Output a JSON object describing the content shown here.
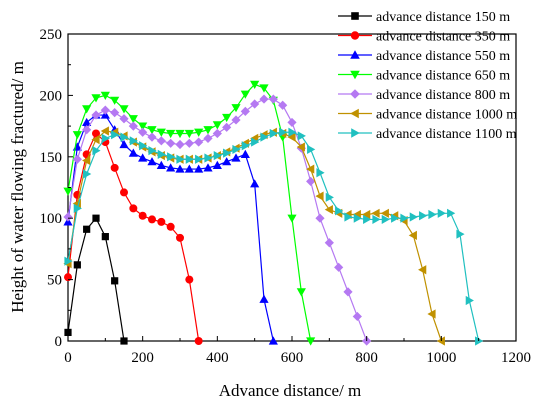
{
  "chart_data": {
    "type": "line",
    "title": "",
    "xlabel": "Advance distance/ m",
    "ylabel": "Height of water flowing fractured/ m",
    "xlim": [
      0,
      1200
    ],
    "ylim": [
      0,
      250
    ],
    "xticks": [
      0,
      200,
      400,
      600,
      800,
      1000,
      1200
    ],
    "yticks": [
      0,
      50,
      100,
      150,
      200,
      250
    ],
    "grid": false,
    "legend": "top-right",
    "series": [
      {
        "name": "advance distance 150 m",
        "color": "#000000",
        "marker": "square",
        "x": [
          0,
          25,
          50,
          75,
          100,
          125,
          150
        ],
        "y": [
          7,
          62,
          91,
          100,
          85,
          49,
          0
        ]
      },
      {
        "name": "advance distance 350 m",
        "color": "#ff0000",
        "marker": "circle",
        "x": [
          0,
          25,
          50,
          75,
          100,
          125,
          150,
          175,
          200,
          225,
          250,
          275,
          300,
          325,
          350
        ],
        "y": [
          52,
          119,
          152,
          169,
          162,
          141,
          121,
          108,
          102,
          99,
          97,
          93,
          84,
          50,
          0
        ]
      },
      {
        "name": "advance distance 550 m",
        "color": "#0000ff",
        "marker": "triangle-up",
        "x": [
          0,
          25,
          50,
          75,
          100,
          125,
          150,
          175,
          200,
          225,
          250,
          275,
          300,
          325,
          350,
          375,
          400,
          425,
          450,
          475,
          500,
          525,
          550
        ],
        "y": [
          97,
          158,
          178,
          184,
          184,
          172,
          160,
          153,
          149,
          146,
          143,
          141,
          140,
          140,
          140,
          141,
          143,
          146,
          149,
          152,
          128,
          34,
          0
        ]
      },
      {
        "name": "advance distance 650 m",
        "color": "#00ff00",
        "marker": "triangle-down",
        "x": [
          0,
          25,
          50,
          75,
          100,
          125,
          150,
          175,
          200,
          225,
          250,
          275,
          300,
          325,
          350,
          375,
          400,
          425,
          450,
          475,
          500,
          525,
          550,
          575,
          600,
          625,
          650
        ],
        "y": [
          122,
          168,
          189,
          198,
          200,
          196,
          189,
          181,
          175,
          172,
          170,
          169,
          169,
          169,
          170,
          172,
          176,
          182,
          190,
          201,
          209,
          206,
          196,
          166,
          100,
          40,
          0
        ]
      },
      {
        "name": "advance distance 800 m",
        "color": "#b579f2",
        "marker": "diamond",
        "x": [
          0,
          25,
          50,
          75,
          100,
          125,
          150,
          175,
          200,
          225,
          250,
          275,
          300,
          325,
          350,
          375,
          400,
          425,
          450,
          475,
          500,
          525,
          550,
          575,
          600,
          625,
          650,
          675,
          700,
          725,
          750,
          775,
          800
        ],
        "y": [
          101,
          148,
          172,
          184,
          188,
          186,
          181,
          175,
          170,
          166,
          163,
          161,
          160,
          161,
          162,
          165,
          169,
          174,
          180,
          187,
          193,
          197,
          197,
          192,
          178,
          157,
          130,
          100,
          80,
          60,
          40,
          20,
          0
        ]
      },
      {
        "name": "advance distance 1000 m",
        "color": "#c09100",
        "marker": "triangle-left",
        "x": [
          0,
          25,
          50,
          75,
          100,
          125,
          150,
          175,
          200,
          225,
          250,
          275,
          300,
          325,
          350,
          375,
          400,
          425,
          450,
          475,
          500,
          525,
          550,
          575,
          600,
          625,
          650,
          675,
          700,
          725,
          750,
          775,
          800,
          825,
          850,
          875,
          900,
          925,
          950,
          975,
          1000
        ],
        "y": [
          63,
          112,
          147,
          164,
          171,
          170,
          167,
          162,
          158,
          154,
          151,
          149,
          148,
          148,
          148,
          149,
          151,
          154,
          157,
          161,
          165,
          168,
          170,
          169,
          166,
          158,
          140,
          118,
          107,
          104,
          103,
          103,
          103,
          104,
          104,
          102,
          98,
          86,
          58,
          22,
          0
        ]
      },
      {
        "name": "advance distance 1100 m",
        "color": "#20c0c0",
        "marker": "triangle-right",
        "x": [
          0,
          25,
          50,
          75,
          100,
          125,
          150,
          175,
          200,
          225,
          250,
          275,
          300,
          325,
          350,
          375,
          400,
          425,
          450,
          475,
          500,
          525,
          550,
          575,
          600,
          625,
          650,
          675,
          700,
          725,
          750,
          775,
          800,
          825,
          850,
          875,
          900,
          925,
          950,
          975,
          1000,
          1025,
          1050,
          1075,
          1100
        ],
        "y": [
          65,
          108,
          136,
          155,
          165,
          168,
          166,
          163,
          159,
          155,
          152,
          150,
          148,
          148,
          148,
          149,
          151,
          153,
          156,
          159,
          162,
          166,
          169,
          170,
          170,
          167,
          156,
          137,
          117,
          106,
          101,
          100,
          99,
          99,
          99,
          100,
          100,
          101,
          102,
          103,
          104,
          104,
          87,
          33,
          0
        ]
      }
    ]
  }
}
